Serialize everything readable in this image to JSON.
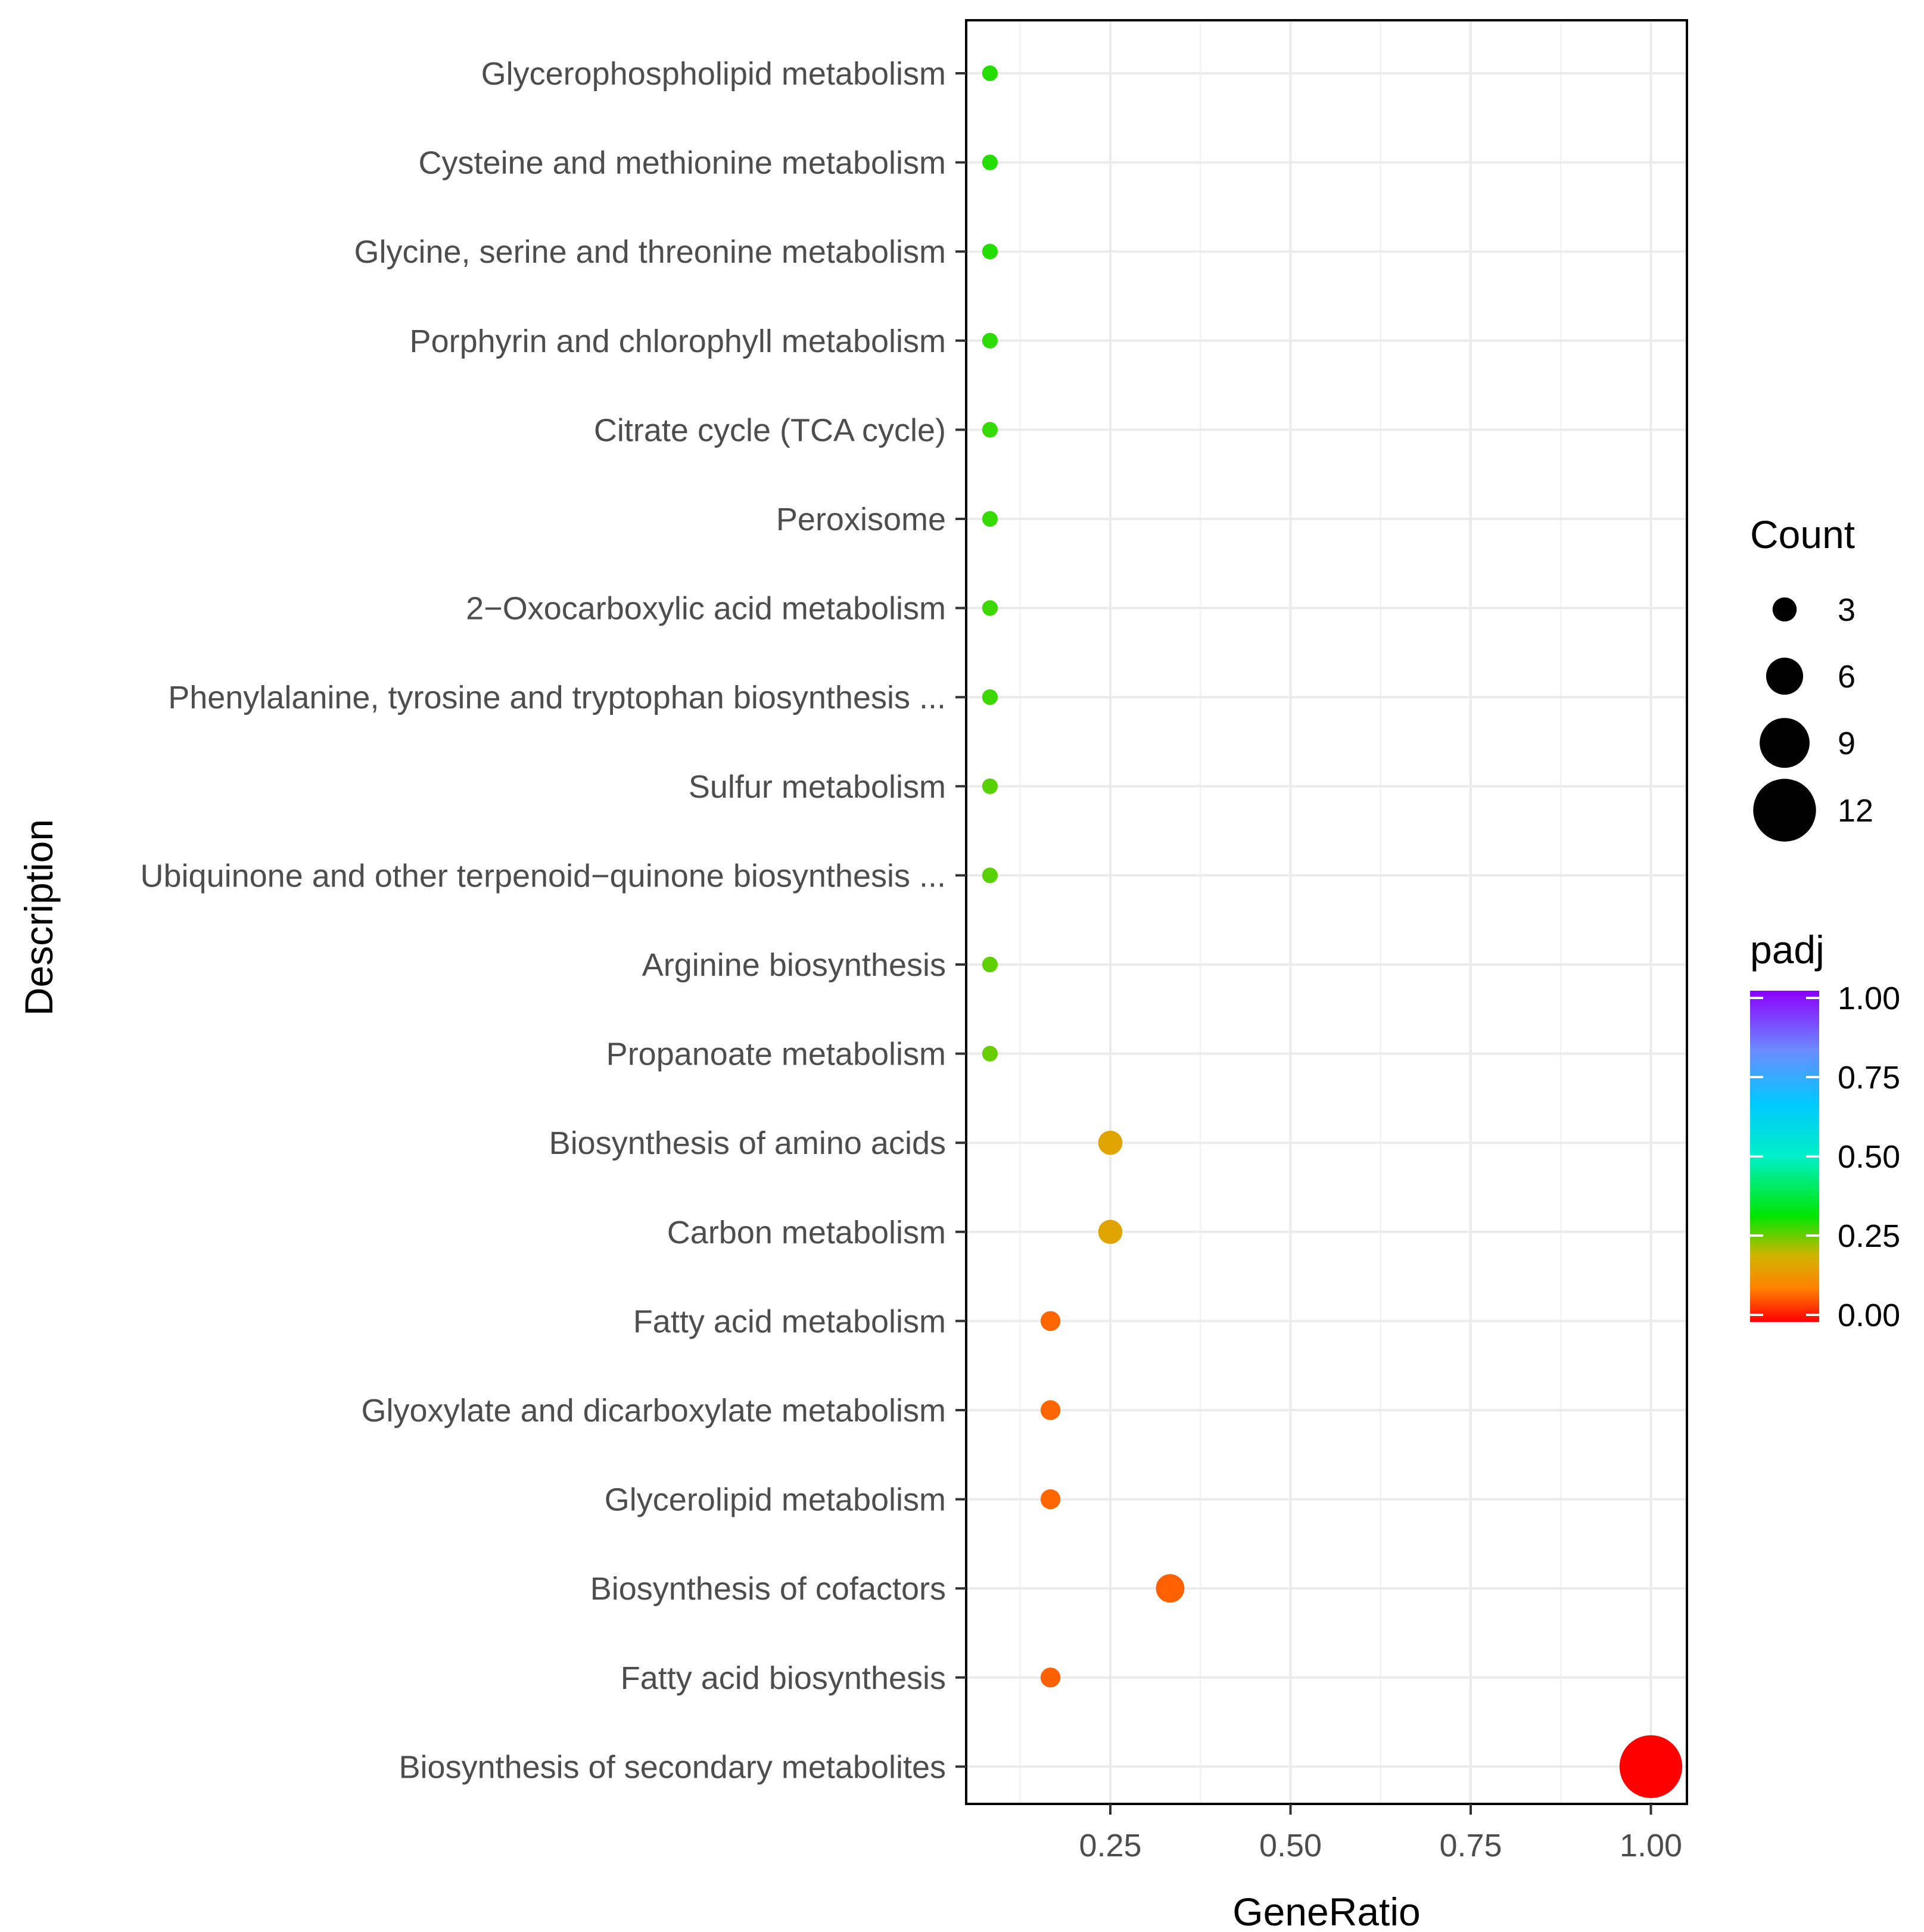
{
  "chart_data": {
    "type": "scatter",
    "subtype": "dotplot",
    "xlabel": "GeneRatio",
    "ylabel": "Description",
    "xlim": [
      0.05,
      1.05
    ],
    "xticks": [
      0.25,
      0.5,
      0.75,
      1.0
    ],
    "xtick_labels": [
      "0.25",
      "0.50",
      "0.75",
      "1.00"
    ],
    "grid": true,
    "categories": [
      "Glycerophospholipid metabolism",
      "Cysteine and methionine metabolism",
      "Glycine, serine and threonine metabolism",
      "Porphyrin and chlorophyll metabolism",
      "Citrate cycle (TCA cycle)",
      "Peroxisome",
      "2−Oxocarboxylic acid metabolism",
      "Phenylalanine, tyrosine and tryptophan biosynthesis ...",
      "Sulfur metabolism",
      "Ubiquinone and other terpenoid−quinone biosynthesis ...",
      "Arginine biosynthesis",
      "Propanoate metabolism",
      "Biosynthesis of amino acids",
      "Carbon metabolism",
      "Fatty acid metabolism",
      "Glyoxylate and dicarboxylate metabolism",
      "Glycerolipid metabolism",
      "Biosynthesis of cofactors",
      "Fatty acid biosynthesis",
      "Biosynthesis of secondary metabolites"
    ],
    "points": [
      {
        "gene_ratio": 0.083,
        "count": 1,
        "padj": 0.3
      },
      {
        "gene_ratio": 0.083,
        "count": 1,
        "padj": 0.3
      },
      {
        "gene_ratio": 0.083,
        "count": 1,
        "padj": 0.3
      },
      {
        "gene_ratio": 0.083,
        "count": 1,
        "padj": 0.295
      },
      {
        "gene_ratio": 0.083,
        "count": 1,
        "padj": 0.29
      },
      {
        "gene_ratio": 0.083,
        "count": 1,
        "padj": 0.29
      },
      {
        "gene_ratio": 0.083,
        "count": 1,
        "padj": 0.285
      },
      {
        "gene_ratio": 0.083,
        "count": 1,
        "padj": 0.285
      },
      {
        "gene_ratio": 0.083,
        "count": 1,
        "padj": 0.27
      },
      {
        "gene_ratio": 0.083,
        "count": 1,
        "padj": 0.27
      },
      {
        "gene_ratio": 0.083,
        "count": 1,
        "padj": 0.265
      },
      {
        "gene_ratio": 0.083,
        "count": 1,
        "padj": 0.26
      },
      {
        "gene_ratio": 0.25,
        "count": 3,
        "padj": 0.17
      },
      {
        "gene_ratio": 0.25,
        "count": 3,
        "padj": 0.17
      },
      {
        "gene_ratio": 0.167,
        "count": 2,
        "padj": 0.08
      },
      {
        "gene_ratio": 0.167,
        "count": 2,
        "padj": 0.08
      },
      {
        "gene_ratio": 0.167,
        "count": 2,
        "padj": 0.08
      },
      {
        "gene_ratio": 0.333,
        "count": 4,
        "padj": 0.075
      },
      {
        "gene_ratio": 0.167,
        "count": 2,
        "padj": 0.075
      },
      {
        "gene_ratio": 1.0,
        "count": 12,
        "padj": 0.0
      }
    ],
    "legend_size": {
      "title": "Count",
      "values": [
        3,
        6,
        9,
        12
      ],
      "labels": [
        "3",
        "6",
        "9",
        "12"
      ]
    },
    "legend_color": {
      "title": "padj",
      "values": [
        1.0,
        0.75,
        0.5,
        0.25,
        0.0
      ],
      "labels": [
        "1.00",
        "0.75",
        "0.50",
        "0.25",
        "0.00"
      ],
      "colormap": "rainbow",
      "low_color": "#ff0000",
      "high_color": "#8b00ff"
    }
  }
}
